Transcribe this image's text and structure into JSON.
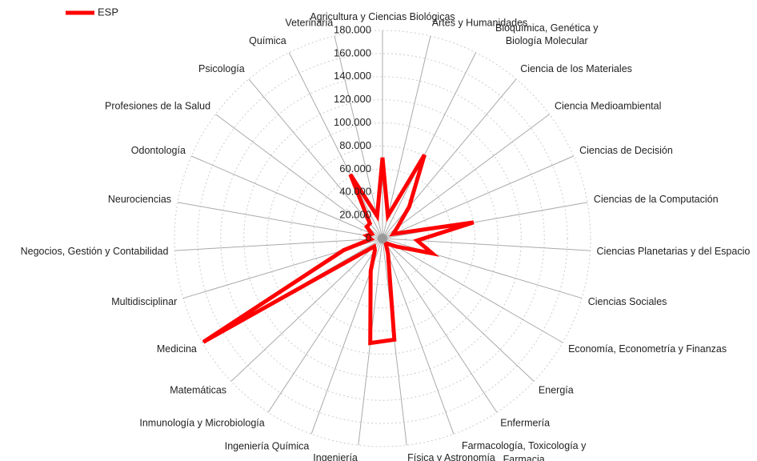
{
  "chart_data": {
    "type": "radar",
    "categories": [
      "Agricultura y Ciencias Biológicas",
      "Artes y Humanidades",
      "Bioquímica, Genética y Biología Molecular",
      "Ciencia de los Materiales",
      "Ciencia Medioambiental",
      "Ciencias de Decisión",
      "Ciencias de la Computación",
      "Ciencias Planetarias y del Espacio",
      "Ciencias Sociales",
      "Economía, Econometría y Finanzas",
      "Energía",
      "Enfermería",
      "Farmacología, Toxicología y Farmacia",
      "Física y Astronomía",
      "Ingeniería",
      "Ingeniería Química",
      "Inmunología y Microbiología",
      "Matemáticas",
      "Medicina",
      "Multidisciplinar",
      "Negocios, Gestión y Contabilidad",
      "Neurociencias",
      "Odontología",
      "Profesiones de la Salud",
      "Psicología",
      "Química",
      "Veterinaria"
    ],
    "series": [
      {
        "name": "ESP",
        "color": "#ff0000",
        "values": [
          70000,
          20000,
          81000,
          36000,
          16000,
          10000,
          80000,
          30000,
          45000,
          14000,
          7000,
          5000,
          14000,
          88000,
          91000,
          30000,
          12000,
          10000,
          179000,
          35000,
          10000,
          14000,
          10000,
          17000,
          17000,
          62000,
          20000
        ]
      }
    ],
    "ylim": [
      0,
      180000
    ],
    "yticks": [
      0,
      {
        "value": 20000,
        "label": "20.000"
      },
      {
        "value": 40000,
        "label": "40.000"
      },
      {
        "value": 60000,
        "label": "60.000"
      },
      {
        "value": 80000,
        "label": "80.000"
      },
      {
        "value": 100000,
        "label": "100.000"
      },
      {
        "value": 120000,
        "label": "120.000"
      },
      {
        "value": 140000,
        "label": "140.000"
      },
      {
        "value": 160000,
        "label": "160.000"
      },
      {
        "value": 180000,
        "label": "180.000"
      }
    ],
    "grid": true,
    "legend": "top-left"
  }
}
